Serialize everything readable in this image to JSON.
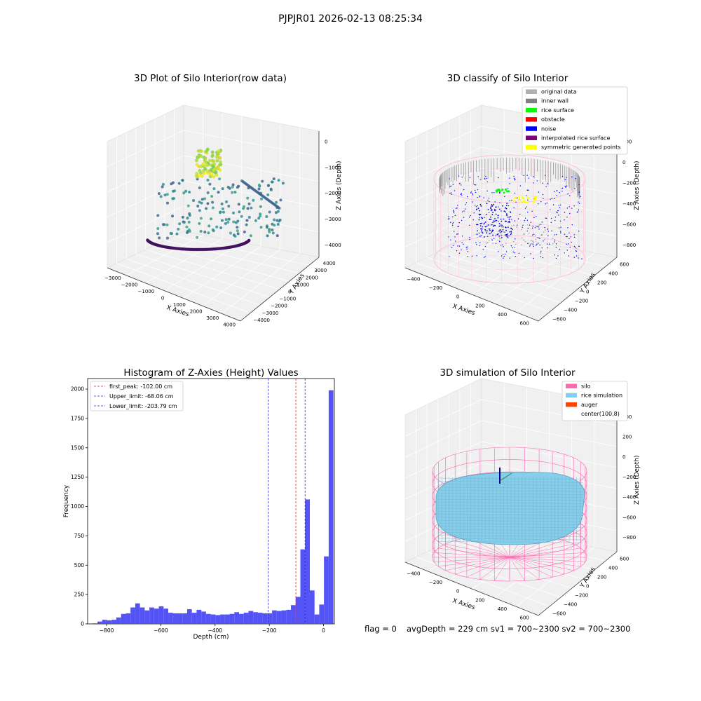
{
  "suptitle": "PJPJR01 2026-02-13 08:25:34",
  "footer": {
    "flag": "flag = 0",
    "stats": "avgDepth = 229 cm  sv1 = 700~2300  sv2 = 700~2300"
  },
  "colors": {
    "hist_bar": "#4b4bf5",
    "first_peak": "#e0302a",
    "limit": "#2a2ae0",
    "silo": "#ff69b4",
    "rice": "#87ceeb",
    "grid_pane": "#f0f0f0"
  },
  "chart_data": [
    {
      "id": "raw",
      "type": "scatter",
      "projection": "3d",
      "title": "3D Plot of Silo Interior(row data)",
      "xlabel": "X Axies",
      "ylabel": "Y Axies",
      "zlabel": "Z Axies (Depth)",
      "xticks": [
        "−3000",
        "−2000",
        "−1000",
        "0",
        "1000",
        "2000",
        "3000",
        "4000"
      ],
      "yticks": [
        "−4000",
        "−3000",
        "−2000",
        "−1000",
        "0",
        "1000",
        "2000",
        "3000",
        "4000"
      ],
      "zticks": [
        "0",
        "−1000",
        "−2000",
        "−3000",
        "−4000"
      ],
      "xlim": [
        -3000,
        4000
      ],
      "ylim": [
        -4000,
        4000
      ],
      "zlim": [
        -4500,
        0
      ],
      "colormap": "viridis"
    },
    {
      "id": "classify",
      "type": "scatter",
      "projection": "3d",
      "title": "3D classify of Silo Interior",
      "xlabel": "X Axies",
      "ylabel": "Y Axies",
      "zlabel": "Z Axies (Depth)",
      "xticks": [
        "−400",
        "−200",
        "0",
        "200",
        "400",
        "600"
      ],
      "yticks": [
        "−600",
        "−400",
        "−200",
        "0",
        "200",
        "400",
        "600"
      ],
      "zticks": [
        "200",
        "0",
        "−200",
        "−400",
        "−600",
        "−800"
      ],
      "legend": [
        {
          "label": "original data",
          "color": "#b0b0b0"
        },
        {
          "label": "inner wall",
          "color": "#808080"
        },
        {
          "label": "rice surface",
          "color": "#00ff00"
        },
        {
          "label": "obstacle",
          "color": "#ff0000"
        },
        {
          "label": "noise",
          "color": "#0000ff"
        },
        {
          "label": "interpolated rice surface",
          "color": "#800080"
        },
        {
          "label": "symmetric generated points",
          "color": "#ffff00"
        }
      ],
      "legend_loc": "upper right"
    },
    {
      "id": "histogram",
      "type": "bar",
      "title": "Histogram of Z-Axies (Height) Values",
      "xlabel": "Depth (cm)",
      "ylabel": "Frequency",
      "xlim": [
        -870,
        40
      ],
      "ylim": [
        0,
        2090
      ],
      "xticks": [
        -800,
        -600,
        -400,
        -200,
        0
      ],
      "xtick_labels": [
        "−800",
        "−600",
        "−400",
        "−200",
        "0"
      ],
      "yticks": [
        0,
        250,
        500,
        750,
        1000,
        1250,
        1500,
        1750,
        2000
      ],
      "bin_width": 17.4,
      "bin_start": -851,
      "values": [
        5,
        20,
        35,
        30,
        35,
        55,
        85,
        90,
        140,
        175,
        140,
        115,
        140,
        130,
        150,
        130,
        95,
        90,
        90,
        90,
        125,
        95,
        120,
        105,
        85,
        80,
        75,
        80,
        80,
        85,
        100,
        85,
        95,
        110,
        100,
        95,
        90,
        90,
        115,
        110,
        115,
        120,
        160,
        230,
        635,
        1060,
        285,
        80,
        165,
        575,
        1990
      ],
      "vlines": [
        {
          "x": -102.0,
          "label": "first_peak: -102.00 cm",
          "kind": "first_peak"
        },
        {
          "x": -68.06,
          "label": "Upper_limit: -68.06 cm",
          "kind": "limit"
        },
        {
          "x": -203.79,
          "label": "Lower_limit: -203.79 cm",
          "kind": "limit"
        }
      ],
      "legend_loc": "upper left"
    },
    {
      "id": "simulation",
      "type": "surface",
      "projection": "3d",
      "title": "3D simulation of Silo Interior",
      "xlabel": "X Axies",
      "ylabel": "Y Axies",
      "zlabel": "Z Axies (Depth)",
      "xticks": [
        "−400",
        "−200",
        "0",
        "200",
        "400",
        "600"
      ],
      "yticks": [
        "−600",
        "−400",
        "−200",
        "0",
        "200",
        "400",
        "600"
      ],
      "zticks": [
        "400",
        "200",
        "0",
        "−200",
        "−400",
        "−600",
        "−800"
      ],
      "legend": [
        {
          "label": "silo",
          "color": "#ff69b4"
        },
        {
          "label": "rice simulation",
          "color": "#87ceeb"
        },
        {
          "label": "auger",
          "color": "#ff4500"
        },
        {
          "label": "center(100,8)",
          "color": "none"
        }
      ],
      "legend_loc": "upper right"
    }
  ]
}
